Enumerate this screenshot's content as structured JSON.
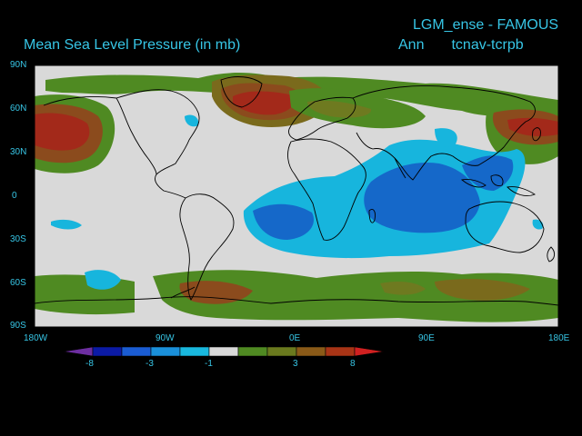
{
  "header": {
    "title_right": "LGM_ense - FAMOUS",
    "title_left": "Mean Sea Level Pressure (in mb)",
    "period": "Ann",
    "variable": "tcnav-tcrpb"
  },
  "axes": {
    "lat_labels": [
      "90N",
      "60N",
      "30N",
      "0",
      "30S",
      "60S",
      "90S"
    ],
    "lon_labels": [
      "180W",
      "90W",
      "0E",
      "90E",
      "180E"
    ]
  },
  "colorbar": {
    "tick_labels": [
      "-8",
      "-3",
      "-1",
      "3",
      "8"
    ],
    "colors": [
      "#6d2ea0",
      "#0b1aa5",
      "#1a5cd3",
      "#1a90da",
      "#19b8de",
      "#d9d9d9",
      "#4f8a22",
      "#6a7a1e",
      "#8a5a18",
      "#a83416",
      "#d02020"
    ]
  },
  "colors": {
    "background": "#000000",
    "text": "#37c6e6",
    "neutral": "#d9d9d9",
    "green": "#4f8a22",
    "olive": "#6e7a20",
    "brown": "#8b4b1d",
    "red": "#a3291a",
    "cyan": "#17b5dd",
    "blue": "#1568c9"
  }
}
